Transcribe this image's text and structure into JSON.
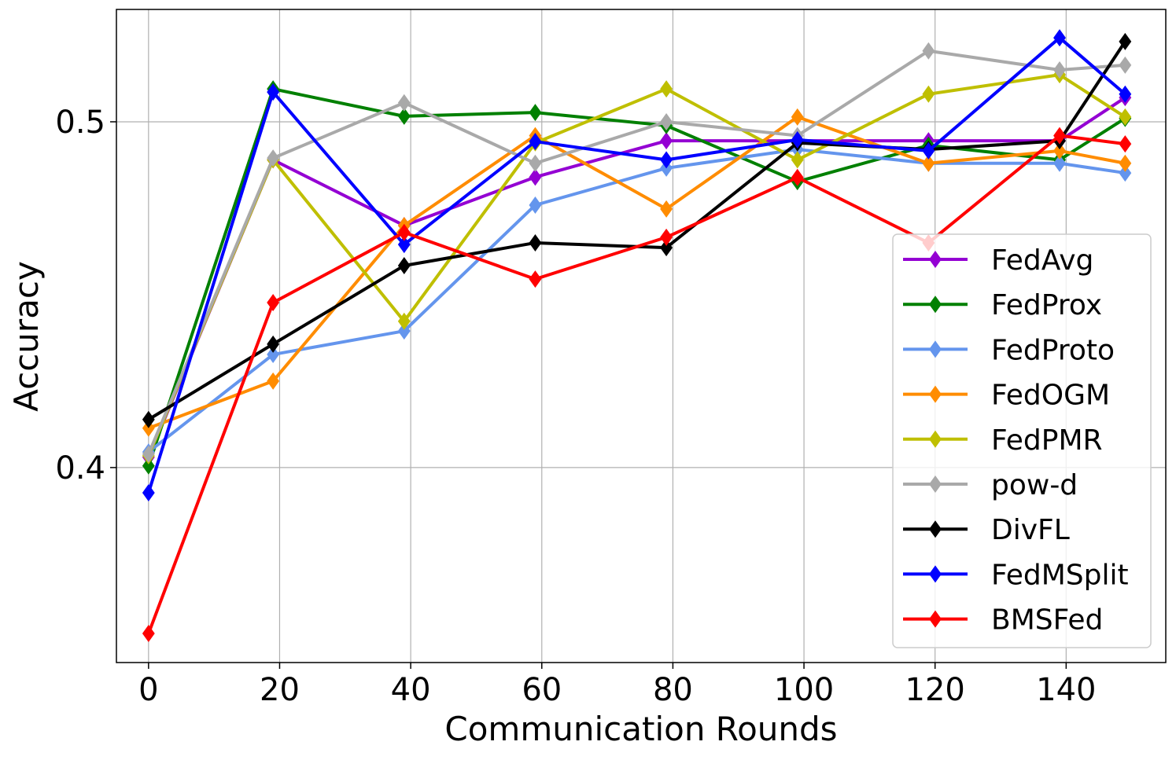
{
  "chart_data": {
    "type": "line",
    "title": "",
    "xlabel": "Communication Rounds",
    "ylabel": "Accuracy",
    "xlim": [
      -4.9,
      155.2
    ],
    "ylim": [
      0.3436,
      0.5325
    ],
    "xticks": [
      0,
      20,
      40,
      60,
      80,
      100,
      120,
      140
    ],
    "yticks": [
      0.4,
      0.5
    ],
    "ytick_labels": [
      "0.4",
      "0.5"
    ],
    "grid": true,
    "legend_position": "lower-right",
    "marker": "diamond",
    "x": [
      0,
      19,
      39,
      59,
      79,
      99,
      119,
      139,
      149
    ],
    "series": [
      {
        "name": "FedAvg",
        "color": "#9400D3",
        "values": [
          0.403,
          0.489,
          0.47,
          0.484,
          0.4945,
          0.4945,
          0.4945,
          0.4945,
          0.507
        ]
      },
      {
        "name": "FedProx",
        "color": "#008000",
        "values": [
          0.4005,
          0.5095,
          0.5016,
          0.5027,
          0.4989,
          0.4827,
          0.4932,
          0.489,
          0.501
        ]
      },
      {
        "name": "FedProto",
        "color": "#6495ED",
        "values": [
          0.4045,
          0.4327,
          0.4395,
          0.4759,
          0.4866,
          0.492,
          0.488,
          0.488,
          0.4852
        ]
      },
      {
        "name": "FedOGM",
        "color": "#FF8C00",
        "values": [
          0.4114,
          0.425,
          0.47,
          0.496,
          0.4748,
          0.5014,
          0.488,
          0.4916,
          0.488
        ]
      },
      {
        "name": "FedPMR",
        "color": "#BFBF00",
        "values": [
          0.4034,
          0.489,
          0.4423,
          0.4939,
          0.5095,
          0.489,
          0.508,
          0.5136,
          0.5014
        ]
      },
      {
        "name": "pow-d",
        "color": "#A9A9A9",
        "values": [
          0.4039,
          0.4895,
          0.5055,
          0.488,
          0.5,
          0.496,
          0.5205,
          0.515,
          0.5164
        ]
      },
      {
        "name": "DivFL",
        "color": "#000000",
        "values": [
          0.4139,
          0.4357,
          0.4584,
          0.465,
          0.4636,
          0.4939,
          0.492,
          0.4945,
          0.5232
        ]
      },
      {
        "name": "FedMSplit",
        "color": "#0000FF",
        "values": [
          0.3927,
          0.5086,
          0.4645,
          0.4943,
          0.489,
          0.4948,
          0.4916,
          0.5243,
          0.508
        ]
      },
      {
        "name": "BMSFed",
        "color": "#FF0000",
        "values": [
          0.352,
          0.4477,
          0.468,
          0.4545,
          0.4666,
          0.4839,
          0.465,
          0.496,
          0.4936
        ]
      }
    ]
  }
}
